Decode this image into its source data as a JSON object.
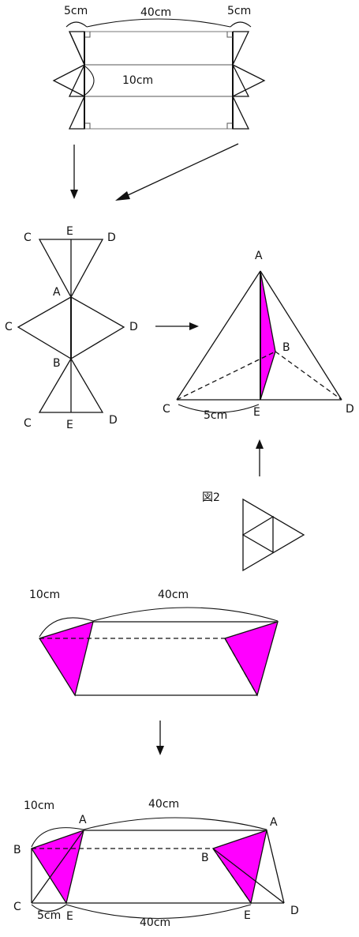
{
  "colors": {
    "shade": "#ff00ff",
    "ink": "#111111",
    "background": "#ffffff"
  },
  "top_figure": {
    "left_width": "5cm",
    "length": "40cm",
    "right_width": "5cm",
    "height": "10cm"
  },
  "folded_net": {
    "top_c": "C",
    "top_e": "E",
    "top_d": "D",
    "a": "A",
    "mid_c": "C",
    "mid_d": "D",
    "b": "B",
    "bot_c": "C",
    "bot_e": "E",
    "bot_d": "D"
  },
  "tetrahedron": {
    "a": "A",
    "b": "B",
    "c": "C",
    "d": "D",
    "e": "E",
    "ce_length": "5cm"
  },
  "figure2": {
    "label": "図2"
  },
  "unfolded_strip": {
    "end_width": "10cm",
    "length": "40cm"
  },
  "labeled_strip": {
    "end_width": "10cm",
    "top_length": "40cm",
    "bottom_length": "40cm",
    "ce_length": "5cm",
    "left_a": "A",
    "left_b": "B",
    "left_c": "C",
    "left_e": "E",
    "right_a": "A",
    "right_b": "B",
    "right_d": "D",
    "right_e": "E"
  }
}
